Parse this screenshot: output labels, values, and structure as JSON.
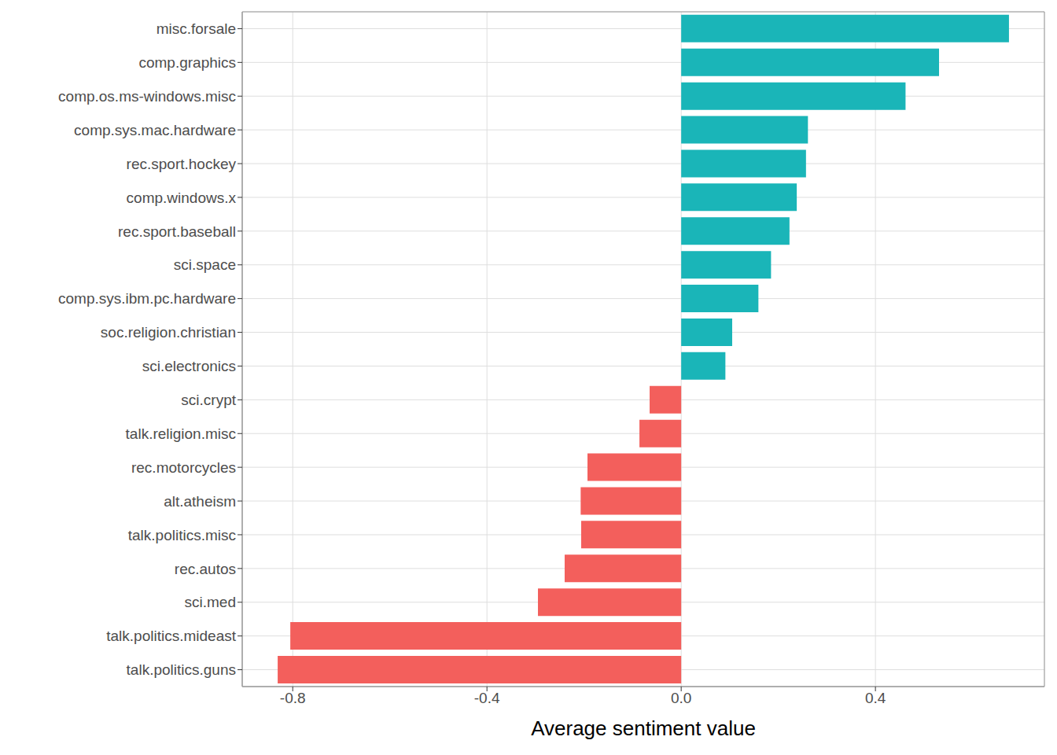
{
  "chart_data": {
    "type": "bar",
    "orientation": "horizontal",
    "x_label": "Average sentiment value",
    "categories": [
      "misc.forsale",
      "comp.graphics",
      "comp.os.ms-windows.misc",
      "comp.sys.mac.hardware",
      "rec.sport.hockey",
      "comp.windows.x",
      "rec.sport.baseball",
      "sci.space",
      "comp.sys.ibm.pc.hardware",
      "soc.religion.christian",
      "sci.electronics",
      "sci.crypt",
      "talk.religion.misc",
      "rec.motorcycles",
      "alt.atheism",
      "talk.politics.misc",
      "rec.autos",
      "sci.med",
      "talk.politics.mideast",
      "talk.politics.guns"
    ],
    "values": [
      0.675,
      0.531,
      0.462,
      0.261,
      0.257,
      0.238,
      0.223,
      0.185,
      0.159,
      0.105,
      0.091,
      -0.065,
      -0.086,
      -0.193,
      -0.207,
      -0.206,
      -0.24,
      -0.295,
      -0.805,
      -0.831
    ],
    "colors": [
      "#1ab5b8",
      "#1ab5b8",
      "#1ab5b8",
      "#1ab5b8",
      "#1ab5b8",
      "#1ab5b8",
      "#1ab5b8",
      "#1ab5b8",
      "#1ab5b8",
      "#1ab5b8",
      "#1ab5b8",
      "#f35f5c",
      "#f35f5c",
      "#f35f5c",
      "#f35f5c",
      "#f35f5c",
      "#f35f5c",
      "#f35f5c",
      "#f35f5c",
      "#f35f5c"
    ],
    "xlim": [
      -0.904,
      0.748
    ],
    "xticks": [
      -0.8,
      -0.4,
      {
        "value": 0,
        "label": "0.0"
      },
      0.4
    ],
    "grid": true
  }
}
